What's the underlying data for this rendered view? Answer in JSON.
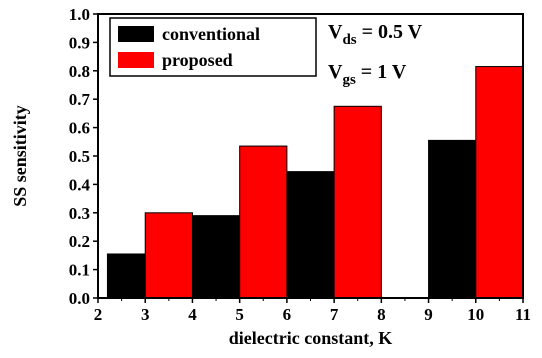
{
  "chart_data": {
    "type": "bar",
    "xlabel": "dielectric constant, K",
    "ylabel": "SS sensitivity",
    "xlim": [
      2,
      11
    ],
    "ylim": [
      0,
      1.0
    ],
    "x_ticks": [
      2,
      3,
      4,
      5,
      6,
      7,
      8,
      9,
      10,
      11
    ],
    "y_ticks": [
      0.0,
      0.1,
      0.2,
      0.3,
      0.4,
      0.5,
      0.6,
      0.7,
      0.8,
      0.9,
      1.0
    ],
    "x_tick_labels": [
      "2",
      "3",
      "4",
      "5",
      "6",
      "7",
      "8",
      "9",
      "10",
      "11"
    ],
    "y_tick_labels": [
      "0.0",
      "0.1",
      "0.2",
      "0.3",
      "0.4",
      "0.5",
      "0.6",
      "0.7",
      "0.8",
      "0.9",
      "1.0"
    ],
    "grid": false,
    "legend_position": "top-left",
    "series": [
      {
        "name": "conventional",
        "color": "#000000",
        "bars": [
          {
            "x_start": 2.2,
            "x_end": 3.0,
            "value": 0.155
          },
          {
            "x_start": 4.0,
            "x_end": 5.0,
            "value": 0.29
          },
          {
            "x_start": 6.0,
            "x_end": 7.0,
            "value": 0.445
          },
          {
            "x_start": 9.0,
            "x_end": 10.0,
            "value": 0.555
          }
        ]
      },
      {
        "name": "proposed",
        "color": "#ff0000",
        "bars": [
          {
            "x_start": 3.0,
            "x_end": 4.0,
            "value": 0.3
          },
          {
            "x_start": 5.0,
            "x_end": 6.0,
            "value": 0.535
          },
          {
            "x_start": 7.0,
            "x_end": 8.0,
            "value": 0.675
          },
          {
            "x_start": 10.0,
            "x_end": 11.0,
            "value": 0.815
          }
        ]
      }
    ],
    "annotations": [
      {
        "main": "V",
        "sub": "ds",
        "rest": " = 0.5 V"
      },
      {
        "main": "V",
        "sub": "gs",
        "rest": " = 1 V"
      }
    ]
  }
}
